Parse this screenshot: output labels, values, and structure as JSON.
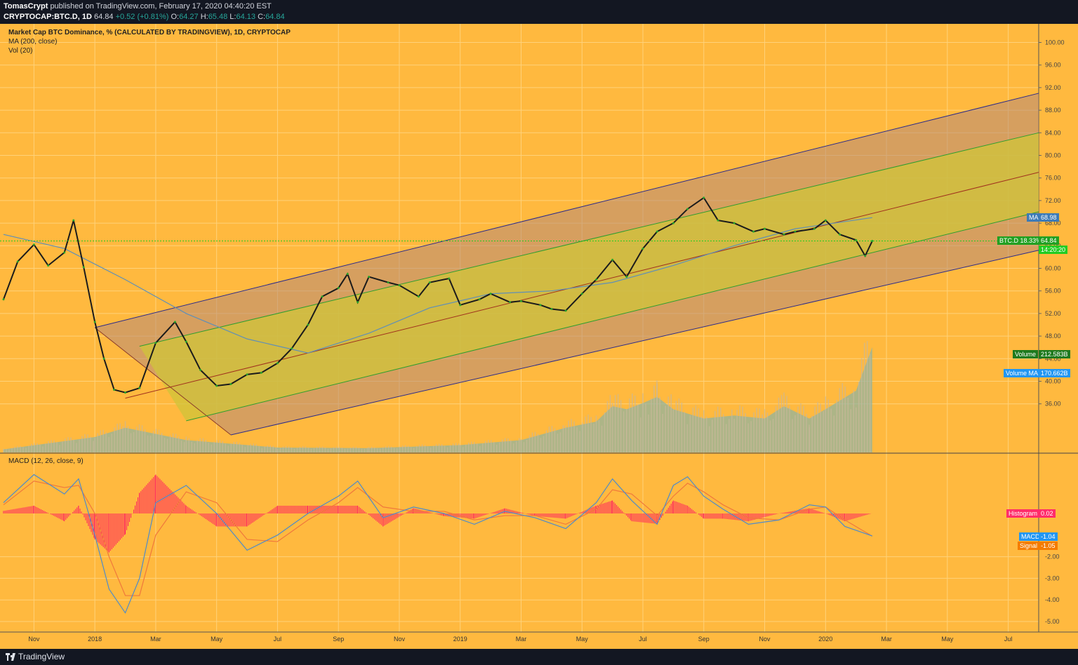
{
  "header": {
    "author": "TomasCrypt",
    "published": "published on TradingView.com, February 17, 2020 04:40:20 EST",
    "symbol": "CRYPTOCAP:BTC.D, 1D",
    "last": "64.84",
    "change": "+0.52 (+0.81%)",
    "o_label": "O:",
    "o": "64.27",
    "h_label": "H:",
    "h": "65.48",
    "l_label": "L:",
    "l": "64.13",
    "c_label": "C:",
    "c": "64.84"
  },
  "legend": {
    "title": "Market Cap BTC Dominance, % (CALCULATED BY TRADINGVIEW), 1D, CRYPTOCAP",
    "ma": "MA (200, close)",
    "vol": "Vol (20)"
  },
  "macd_title": "MACD (12, 26, close, 9)",
  "footer": {
    "brand": "TradingView"
  },
  "colors": {
    "background": "#ffb93f",
    "channel_outer": "#2b2b8a",
    "channel_inner": "#2e9e2e",
    "median": "#a0301d",
    "ma": "#5f8fb8",
    "price": "#1b1b1b",
    "volume": "#8ab3a6",
    "macd": "#4f8bc9",
    "signal": "#f0783c",
    "hist": "#ff2060",
    "last_price_line": "#22cc22"
  },
  "tags": {
    "ma": {
      "name": "MA",
      "value": "68.98"
    },
    "price": {
      "name": "BTC.D 18.33%",
      "value": "64.84"
    },
    "countdown": "14:20:20",
    "volume": {
      "name": "Volume",
      "value": "212.583B"
    },
    "volume_ma": {
      "name": "Volume MA",
      "value": "170.662B"
    },
    "histogram": {
      "name": "Histogram",
      "value": "0.02"
    },
    "macd": {
      "name": "MACD",
      "value": "-1.04"
    },
    "signal": {
      "name": "Signal",
      "value": "-1.05"
    }
  },
  "chart_data": [
    {
      "type": "line",
      "title": "Market Cap BTC Dominance, % (CALCULATED BY TRADINGVIEW), 1D, CRYPTOCAP",
      "x_ticks": [
        "Nov",
        "2018",
        "Mar",
        "May",
        "Jul",
        "Sep",
        "Nov",
        "2019",
        "Mar",
        "May",
        "Jul",
        "Sep",
        "Nov",
        "2020",
        "Mar",
        "May",
        "Jul"
      ],
      "y_ticks": [
        "100.00",
        "96.00",
        "92.00",
        "88.00",
        "84.00",
        "80.00",
        "76.00",
        "72.00",
        "68.00",
        "64.00",
        "60.00",
        "56.00",
        "52.00",
        "48.00",
        "44.00",
        "40.00",
        "36.00"
      ],
      "ylim": [
        30,
        103
      ],
      "x_range_months": [
        "2017-10",
        "2020-08"
      ],
      "series": [
        {
          "name": "BTC.D",
          "x": [
            "2017-10-01",
            "2017-10-15",
            "2017-11-01",
            "2017-11-15",
            "2017-12-01",
            "2017-12-10",
            "2017-12-20",
            "2018-01-01",
            "2018-01-10",
            "2018-01-20",
            "2018-02-01",
            "2018-02-15",
            "2018-03-01",
            "2018-03-20",
            "2018-04-01",
            "2018-04-15",
            "2018-05-01",
            "2018-05-15",
            "2018-06-01",
            "2018-06-15",
            "2018-07-01",
            "2018-07-15",
            "2018-08-01",
            "2018-08-15",
            "2018-09-01",
            "2018-09-10",
            "2018-09-20",
            "2018-10-01",
            "2018-10-20",
            "2018-11-01",
            "2018-11-20",
            "2018-12-01",
            "2018-12-20",
            "2019-01-01",
            "2019-01-20",
            "2019-02-01",
            "2019-02-20",
            "2019-03-01",
            "2019-03-20",
            "2019-04-01",
            "2019-04-15",
            "2019-05-01",
            "2019-05-15",
            "2019-06-01",
            "2019-06-15",
            "2019-07-01",
            "2019-07-15",
            "2019-08-01",
            "2019-08-15",
            "2019-09-01",
            "2019-09-15",
            "2019-10-01",
            "2019-10-20",
            "2019-11-01",
            "2019-11-20",
            "2019-12-01",
            "2019-12-20",
            "2020-01-01",
            "2020-01-15",
            "2020-02-01",
            "2020-02-10",
            "2020-02-17"
          ],
          "values": [
            54.5,
            61.2,
            64.2,
            60.5,
            62.8,
            68.5,
            60.2,
            50.5,
            44.0,
            38.5,
            38.0,
            38.8,
            46.8,
            50.5,
            47.0,
            42.0,
            39.2,
            39.5,
            41.2,
            41.5,
            43.2,
            45.8,
            50.0,
            55.0,
            56.5,
            59.0,
            54.0,
            58.5,
            57.5,
            57.0,
            55.0,
            57.5,
            58.2,
            53.5,
            54.5,
            55.5,
            54.0,
            54.2,
            53.5,
            52.8,
            52.5,
            55.5,
            58.0,
            61.5,
            58.5,
            63.5,
            66.5,
            68.0,
            70.5,
            72.5,
            68.5,
            68.0,
            66.5,
            67.0,
            66.0,
            66.5,
            67.0,
            68.5,
            66.0,
            65.0,
            62.2,
            64.84
          ]
        },
        {
          "name": "MA",
          "x": [
            "2017-10-01",
            "2017-12-01",
            "2018-02-01",
            "2018-04-01",
            "2018-06-01",
            "2018-08-01",
            "2018-10-01",
            "2018-12-01",
            "2019-02-01",
            "2019-04-01",
            "2019-06-01",
            "2019-08-01",
            "2019-10-01",
            "2019-12-01",
            "2020-02-17"
          ],
          "values": [
            66.0,
            63.5,
            58.0,
            52.0,
            47.5,
            45.0,
            48.5,
            53.0,
            55.5,
            56.0,
            57.5,
            60.5,
            64.0,
            67.0,
            68.98
          ]
        }
      ],
      "channel": {
        "outer_upper": {
          "from": [
            "2018-01-01",
            49.5
          ],
          "to": [
            "2020-08-01",
            91.0
          ]
        },
        "inner_upper": {
          "from": [
            "2018-02-15",
            46.2
          ],
          "to": [
            "2020-08-01",
            84.0
          ]
        },
        "median": {
          "from": [
            "2018-02-01",
            37.0
          ],
          "to": [
            "2020-08-01",
            77.0
          ]
        },
        "inner_lower": {
          "from": [
            "2018-04-01",
            33.0
          ],
          "to": [
            "2020-08-01",
            70.0
          ]
        },
        "outer_lower": {
          "from": [
            "2018-05-15",
            30.5
          ],
          "to": [
            "2020-08-01",
            63.2
          ]
        }
      }
    },
    {
      "type": "area",
      "title": "Vol (20)",
      "series": [
        {
          "name": "Volume MA",
          "x": [
            "2017-10-01",
            "2018-01-01",
            "2018-02-01",
            "2018-04-01",
            "2018-07-01",
            "2018-10-01",
            "2019-01-01",
            "2019-03-01",
            "2019-04-15",
            "2019-05-15",
            "2019-06-01",
            "2019-06-15",
            "2019-07-01",
            "2019-07-15",
            "2019-08-01",
            "2019-09-01",
            "2019-10-01",
            "2019-11-01",
            "2019-11-20",
            "2019-12-15",
            "2020-01-01",
            "2020-02-01",
            "2020-02-17"
          ],
          "values": [
            5,
            25,
            40,
            20,
            8,
            7,
            12,
            20,
            40,
            50,
            75,
            70,
            80,
            90,
            70,
            55,
            60,
            55,
            75,
            55,
            70,
            100,
            170.662
          ]
        }
      ]
    },
    {
      "type": "line",
      "title": "MACD (12, 26, close, 9)",
      "y_ticks": [
        "-2.00",
        "-3.00",
        "-4.00",
        "-5.00"
      ],
      "ylim": [
        -5.5,
        2.1
      ],
      "series": [
        {
          "name": "MACD",
          "x": [
            "2017-10-01",
            "2017-11-01",
            "2017-12-01",
            "2017-12-15",
            "2018-01-01",
            "2018-01-15",
            "2018-02-01",
            "2018-02-15",
            "2018-03-01",
            "2018-04-01",
            "2018-05-01",
            "2018-06-01",
            "2018-07-01",
            "2018-08-01",
            "2018-09-01",
            "2018-09-20",
            "2018-10-15",
            "2018-11-15",
            "2018-12-15",
            "2019-01-15",
            "2019-02-15",
            "2019-03-15",
            "2019-04-15",
            "2019-05-15",
            "2019-06-01",
            "2019-06-20",
            "2019-07-15",
            "2019-08-01",
            "2019-08-15",
            "2019-09-01",
            "2019-09-20",
            "2019-10-15",
            "2019-11-15",
            "2019-12-15",
            "2020-01-01",
            "2020-01-20",
            "2020-02-17"
          ],
          "values": [
            0.5,
            1.8,
            0.9,
            1.6,
            -1.0,
            -3.5,
            -4.6,
            -3.0,
            0.5,
            1.3,
            0.0,
            -1.7,
            -1.0,
            0.0,
            0.8,
            1.5,
            -0.2,
            0.3,
            0.0,
            -0.5,
            0.1,
            -0.2,
            -0.7,
            0.5,
            1.6,
            0.6,
            -0.5,
            1.3,
            1.7,
            0.8,
            0.2,
            -0.5,
            -0.3,
            0.4,
            0.3,
            -0.6,
            -1.04
          ]
        },
        {
          "name": "Signal",
          "x": [
            "2017-10-01",
            "2017-11-01",
            "2017-12-01",
            "2017-12-15",
            "2018-01-01",
            "2018-01-15",
            "2018-02-01",
            "2018-02-15",
            "2018-03-01",
            "2018-04-01",
            "2018-05-01",
            "2018-06-01",
            "2018-07-01",
            "2018-08-01",
            "2018-09-01",
            "2018-09-20",
            "2018-10-15",
            "2018-11-15",
            "2018-12-15",
            "2019-01-15",
            "2019-02-15",
            "2019-03-15",
            "2019-04-15",
            "2019-05-15",
            "2019-06-01",
            "2019-06-20",
            "2019-07-15",
            "2019-08-01",
            "2019-08-15",
            "2019-09-01",
            "2019-09-20",
            "2019-10-15",
            "2019-11-15",
            "2019-12-15",
            "2020-01-01",
            "2020-01-20",
            "2020-02-17"
          ],
          "values": [
            0.4,
            1.5,
            1.2,
            1.3,
            0.0,
            -2.0,
            -3.8,
            -3.8,
            -1.0,
            1.0,
            0.5,
            -1.2,
            -1.3,
            -0.3,
            0.5,
            1.2,
            0.3,
            0.1,
            0.1,
            -0.3,
            -0.1,
            -0.1,
            -0.5,
            0.2,
            1.1,
            0.9,
            -0.1,
            0.8,
            1.4,
            1.0,
            0.4,
            -0.2,
            -0.3,
            0.2,
            0.3,
            -0.3,
            -1.05
          ]
        }
      ]
    }
  ]
}
